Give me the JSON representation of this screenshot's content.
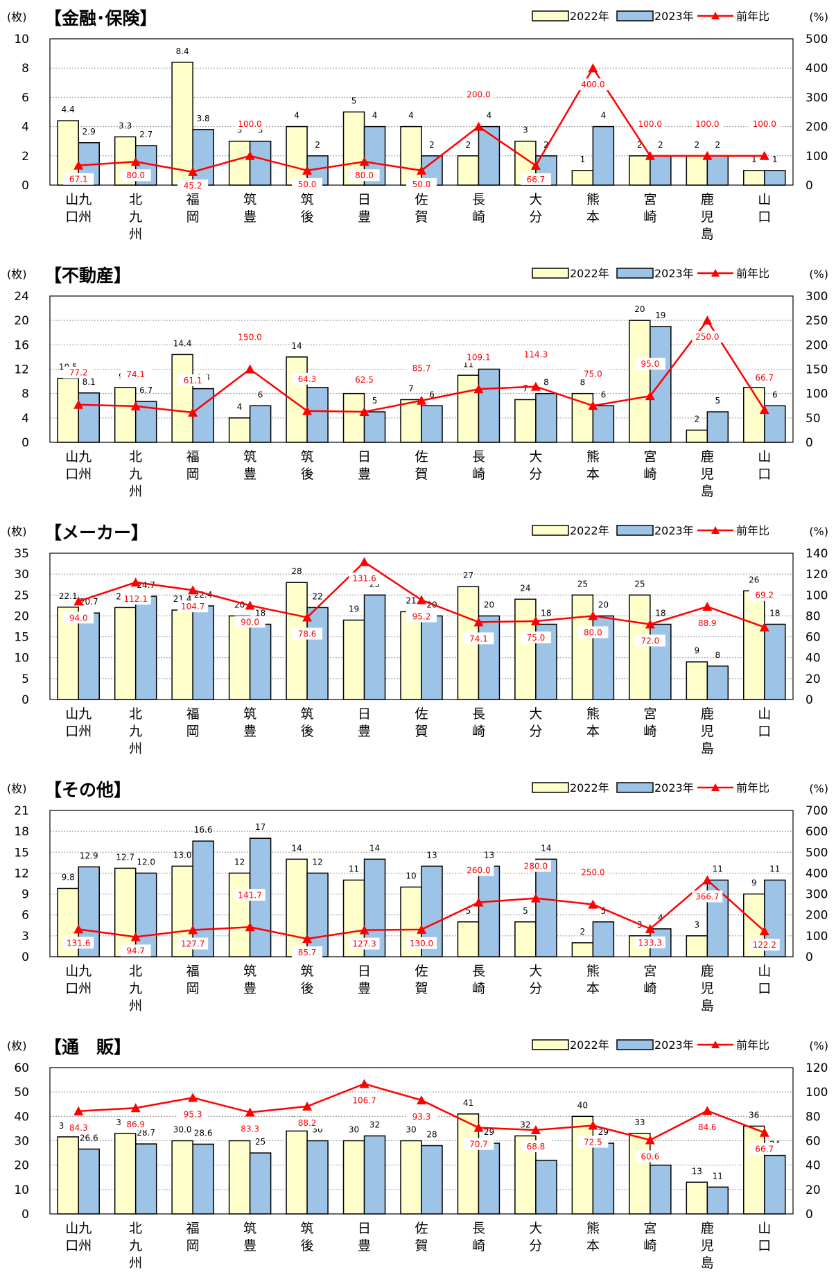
{
  "legend": {
    "s2022": "2022年",
    "s2023": "2023年",
    "ratio": "前年比"
  },
  "units": {
    "left": "(枚)",
    "right": "(%)"
  },
  "colors": {
    "y2022": "#ffffcc",
    "y2023": "#9dc3e6",
    "ratio": "#ff0000",
    "bar_stroke": "#000000"
  },
  "categories": [
    [
      "山九",
      "口州"
    ],
    [
      "北",
      "九",
      "州"
    ],
    [
      "福",
      "岡"
    ],
    [
      "筑",
      "豊"
    ],
    [
      "筑",
      "後"
    ],
    [
      "日",
      "豊"
    ],
    [
      "佐",
      "賀"
    ],
    [
      "長",
      "崎"
    ],
    [
      "大",
      "分"
    ],
    [
      "熊",
      "本"
    ],
    [
      "宮",
      "崎"
    ],
    [
      "鹿",
      "児",
      "島"
    ],
    [
      "山",
      "口"
    ]
  ],
  "chart_data": [
    {
      "type": "bar",
      "title": "【金融･保険】",
      "series": [
        {
          "name": "2022年",
          "values": [
            4.4,
            3.3,
            8.4,
            3,
            4,
            5,
            4,
            2,
            3,
            1,
            2,
            2,
            1
          ],
          "labels": [
            "4.4",
            "3.3",
            "8.4",
            "3",
            "4",
            "5",
            "4",
            "2",
            "3",
            "1",
            "2",
            "2",
            "1"
          ]
        },
        {
          "name": "2023年",
          "values": [
            2.9,
            2.7,
            3.8,
            3,
            2,
            4,
            2,
            4,
            2,
            4,
            2,
            2,
            1
          ],
          "labels": [
            "2.9",
            "2.7",
            "3.8",
            "3",
            "2",
            "4",
            "2",
            "4",
            "2",
            "4",
            "2",
            "2",
            "1"
          ]
        },
        {
          "name": "前年比",
          "values": [
            67.1,
            80.0,
            45.2,
            100.0,
            50.0,
            80.0,
            50.0,
            200.0,
            66.7,
            400.0,
            100.0,
            100.0,
            100.0
          ],
          "labels": [
            "67.1",
            "80.0",
            "45.2",
            "100.0",
            "50.0",
            "80.0",
            "50.0",
            "200.0",
            "66.7",
            "400.0",
            "100.0",
            "100.0",
            "100.0"
          ]
        }
      ],
      "ylim": [
        0,
        10
      ],
      "yticks": [
        "0",
        "2",
        "4",
        "6",
        "8",
        "10"
      ],
      "y2lim": [
        0,
        500
      ],
      "y2ticks": [
        "0",
        "100",
        "200",
        "300",
        "400",
        "500"
      ]
    },
    {
      "type": "bar",
      "title": "【不動産】",
      "series": [
        {
          "name": "2022年",
          "values": [
            10.5,
            9.0,
            14.4,
            4,
            14,
            8,
            7,
            11,
            7,
            8,
            20,
            2,
            9
          ],
          "labels": [
            "10.5",
            "9.0",
            "14.4",
            "4",
            "14",
            "8",
            "7",
            "11",
            "7",
            "8",
            "20",
            "2",
            "9"
          ]
        },
        {
          "name": "2023年",
          "values": [
            8.1,
            6.7,
            8.8,
            6,
            9,
            5,
            6,
            12,
            8,
            6,
            19,
            5,
            6
          ],
          "labels": [
            "8.1",
            "6.7",
            "8.8",
            "6",
            "9",
            "5",
            "6",
            "12",
            "8",
            "6",
            "19",
            "5",
            "6"
          ]
        },
        {
          "name": "前年比",
          "values": [
            77.2,
            74.1,
            61.1,
            150.0,
            64.3,
            62.5,
            85.7,
            109.1,
            114.3,
            75.0,
            95.0,
            250.0,
            66.7
          ],
          "labels": [
            "77.2",
            "74.1",
            "61.1",
            "150.0",
            "64.3",
            "62.5",
            "85.7",
            "109.1",
            "114.3",
            "75.0",
            "95.0",
            "250.0",
            "66.7"
          ]
        }
      ],
      "ylim": [
        0,
        24
      ],
      "yticks": [
        "0",
        "4",
        "8",
        "12",
        "16",
        "20",
        "24"
      ],
      "y2lim": [
        0,
        300
      ],
      "y2ticks": [
        "0",
        "50",
        "100",
        "150",
        "200",
        "250",
        "300"
      ]
    },
    {
      "type": "bar",
      "title": "【メーカー】",
      "series": [
        {
          "name": "2022年",
          "values": [
            22.1,
            22.0,
            21.4,
            20,
            28,
            19,
            21,
            27,
            24,
            25,
            25,
            9,
            26
          ],
          "labels": [
            "22.1",
            "22.0",
            "21.4",
            "20",
            "28",
            "19",
            "21",
            "27",
            "24",
            "25",
            "25",
            "9",
            "26"
          ]
        },
        {
          "name": "2023年",
          "values": [
            20.7,
            24.7,
            22.4,
            18,
            22,
            25,
            20,
            20,
            18,
            20,
            18,
            8,
            18
          ],
          "labels": [
            "20.7",
            "24.7",
            "22.4",
            "18",
            "22",
            "25",
            "20",
            "20",
            "18",
            "20",
            "18",
            "8",
            "18"
          ]
        },
        {
          "name": "前年比",
          "values": [
            94.0,
            112.1,
            104.7,
            90.0,
            78.6,
            131.6,
            95.2,
            74.1,
            75.0,
            80.0,
            72.0,
            88.9,
            69.2
          ],
          "labels": [
            "94.0",
            "112.1",
            "104.7",
            "90.0",
            "78.6",
            "131.6",
            "95.2",
            "74.1",
            "75.0",
            "80.0",
            "72.0",
            "88.9",
            "69.2"
          ]
        }
      ],
      "ylim": [
        0,
        35
      ],
      "yticks": [
        "0",
        "5",
        "10",
        "15",
        "20",
        "25",
        "30",
        "35"
      ],
      "y2lim": [
        0,
        140
      ],
      "y2ticks": [
        "0",
        "20",
        "40",
        "60",
        "80",
        "100",
        "120",
        "140"
      ]
    },
    {
      "type": "bar",
      "title": "【その他】",
      "series": [
        {
          "name": "2022年",
          "values": [
            9.8,
            12.7,
            13.0,
            12,
            14,
            11,
            10,
            5,
            5,
            2,
            3,
            3,
            9
          ],
          "labels": [
            "9.8",
            "12.7",
            "13.0",
            "12",
            "14",
            "11",
            "10",
            "5",
            "5",
            "2",
            "3",
            "3",
            "9"
          ]
        },
        {
          "name": "2023年",
          "values": [
            12.9,
            12.0,
            16.6,
            17,
            12,
            14,
            13,
            13,
            14,
            5,
            4,
            11,
            11
          ],
          "labels": [
            "12.9",
            "12.0",
            "16.6",
            "17",
            "12",
            "14",
            "13",
            "13",
            "14",
            "5",
            "4",
            "11",
            "11"
          ]
        },
        {
          "name": "前年比",
          "values": [
            131.6,
            94.7,
            127.7,
            141.7,
            85.7,
            127.3,
            130.0,
            260.0,
            280.0,
            250.0,
            133.3,
            366.7,
            122.2
          ],
          "labels": [
            "131.6",
            "94.7",
            "127.7",
            "141.7",
            "85.7",
            "127.3",
            "130.0",
            "260.0",
            "280.0",
            "250.0",
            "133.3",
            "366.7",
            "122.2"
          ]
        }
      ],
      "ylim": [
        0,
        21
      ],
      "yticks": [
        "0",
        "3",
        "6",
        "9",
        "12",
        "15",
        "18",
        "21"
      ],
      "y2lim": [
        0,
        700
      ],
      "y2ticks": [
        "0",
        "100",
        "200",
        "300",
        "400",
        "500",
        "600",
        "700"
      ]
    },
    {
      "type": "bar",
      "title": "【通　販】",
      "series": [
        {
          "name": "2022年",
          "values": [
            31.6,
            33.0,
            30.0,
            30,
            34,
            30,
            30,
            41,
            32,
            40,
            33,
            13,
            36
          ],
          "labels": [
            "31.6",
            "33.0",
            "30.0",
            "30",
            "34",
            "30",
            "30",
            "41",
            "32",
            "40",
            "33",
            "13",
            "36"
          ]
        },
        {
          "name": "2023年",
          "values": [
            26.6,
            28.7,
            28.6,
            25,
            30,
            32,
            28,
            29,
            22,
            29,
            20,
            11,
            24
          ],
          "labels": [
            "26.6",
            "28.7",
            "28.6",
            "25",
            "30",
            "32",
            "28",
            "29",
            "22",
            "29",
            "20",
            "11",
            "24"
          ]
        },
        {
          "name": "前年比",
          "values": [
            84.3,
            86.9,
            95.3,
            83.3,
            88.2,
            106.7,
            93.3,
            70.7,
            68.8,
            72.5,
            60.6,
            84.6,
            66.7
          ],
          "labels": [
            "84.3",
            "86.9",
            "95.3",
            "83.3",
            "88.2",
            "106.7",
            "93.3",
            "70.7",
            "68.8",
            "72.5",
            "60.6",
            "84.6",
            "66.7"
          ]
        }
      ],
      "ylim": [
        0,
        60
      ],
      "yticks": [
        "0",
        "10",
        "20",
        "30",
        "40",
        "50",
        "60"
      ],
      "y2lim": [
        0,
        120
      ],
      "y2ticks": [
        "0",
        "20",
        "40",
        "60",
        "80",
        "100",
        "120"
      ]
    }
  ]
}
